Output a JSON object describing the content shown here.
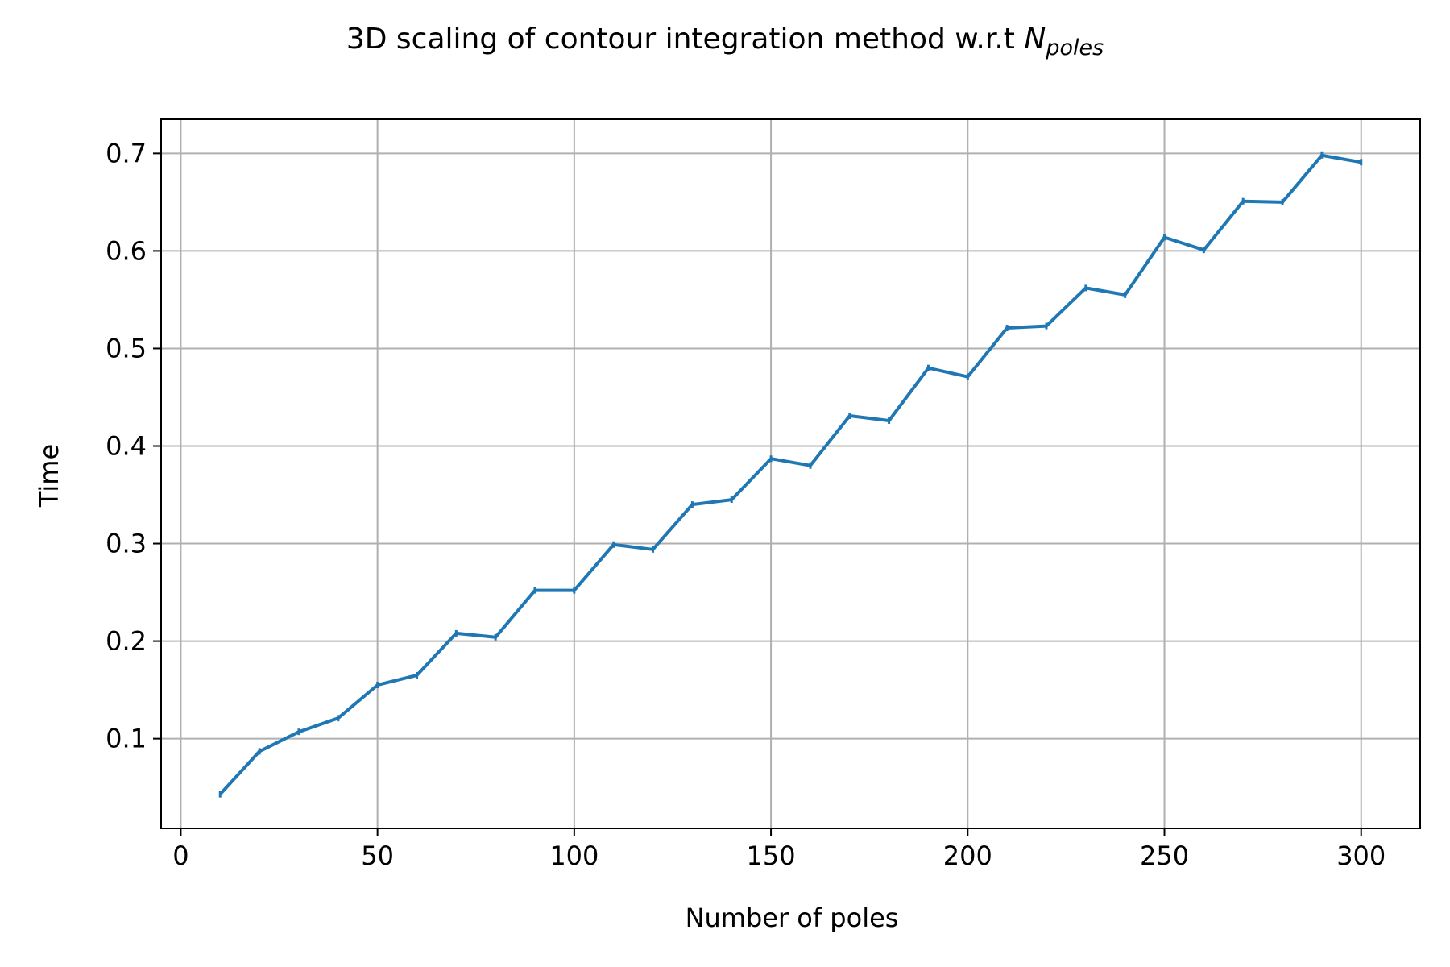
{
  "chart_data": {
    "type": "line",
    "title": "3D scaling of contour integration method w.r.t ",
    "title_math_base": "N",
    "title_math_sub": "poles",
    "xlabel": "Number of poles",
    "ylabel": "Time",
    "xlim": [
      -5,
      315
    ],
    "ylim": [
      0.008,
      0.735
    ],
    "xticks": [
      0,
      50,
      100,
      150,
      200,
      250,
      300
    ],
    "xtick_labels": [
      "0",
      "50",
      "100",
      "150",
      "200",
      "250",
      "300"
    ],
    "yticks": [
      0.1,
      0.2,
      0.3,
      0.4,
      0.5,
      0.6,
      0.7
    ],
    "ytick_labels": [
      "0.1",
      "0.2",
      "0.3",
      "0.4",
      "0.5",
      "0.6",
      "0.7"
    ],
    "grid": true,
    "series": [
      {
        "color": "#1f77b4",
        "x": [
          10,
          20,
          30,
          40,
          50,
          60,
          70,
          80,
          90,
          100,
          110,
          120,
          130,
          140,
          150,
          160,
          170,
          180,
          190,
          200,
          210,
          220,
          230,
          240,
          250,
          260,
          270,
          280,
          290,
          300
        ],
        "y": [
          0.043,
          0.087,
          0.107,
          0.121,
          0.155,
          0.165,
          0.208,
          0.204,
          0.252,
          0.252,
          0.299,
          0.294,
          0.34,
          0.345,
          0.387,
          0.38,
          0.431,
          0.426,
          0.48,
          0.471,
          0.521,
          0.523,
          0.562,
          0.555,
          0.614,
          0.601,
          0.651,
          0.65,
          0.698,
          0.691
        ]
      }
    ]
  }
}
